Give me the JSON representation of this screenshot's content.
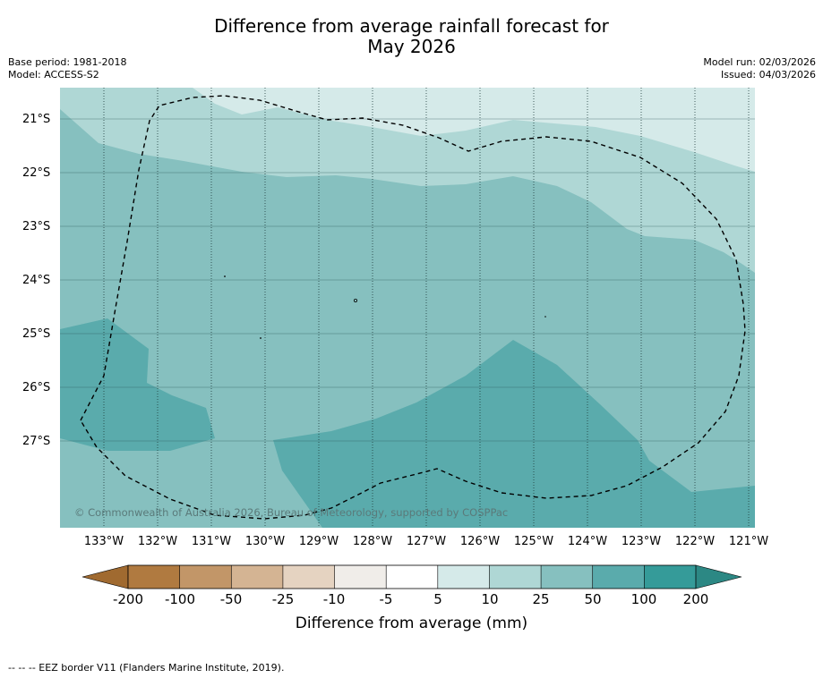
{
  "title": {
    "line1": "Difference from average rainfall forecast for",
    "line2": "May 2026"
  },
  "meta_left": {
    "base_period": "Base period: 1981-2018",
    "model": "Model: ACCESS-S2"
  },
  "meta_right": {
    "model_run": "Model run: 02/03/2026",
    "issued": "Issued: 04/03/2026"
  },
  "map": {
    "lat_labels": [
      "21°S",
      "22°S",
      "23°S",
      "24°S",
      "25°S",
      "26°S",
      "27°S"
    ],
    "lon_labels": [
      "133°W",
      "132°W",
      "131°W",
      "130°W",
      "129°W",
      "128°W",
      "127°W",
      "126°W",
      "125°W",
      "124°W",
      "123°W",
      "122°W",
      "121°W"
    ],
    "copyright": "© Commonwealth of Australia 2026, Bureau of Meteorology, supported by COSPPac",
    "colors": {
      "band_5_10": "#d5eae9",
      "band_10_25": "#afd7d5",
      "band_25_50": "#86c0bf",
      "band_50_100": "#5aabac"
    }
  },
  "colorbar": {
    "colors": [
      "#b07a40",
      "#c29668",
      "#d4b493",
      "#e5d3c1",
      "#f0ede9",
      "#ffffff",
      "#d5eae9",
      "#afd7d5",
      "#86c0bf",
      "#5aabac",
      "#359b99"
    ],
    "end_low_color": "#a06a30",
    "end_high_color": "#2c8884",
    "ticks": [
      "-200",
      "-100",
      "-50",
      "-25",
      "-10",
      "-5",
      "5",
      "10",
      "25",
      "50",
      "100",
      "200"
    ],
    "title": "Difference from average (mm)"
  },
  "footnote": "--  --  -- EEZ border V11 (Flanders Marine Institute, 2019)."
}
